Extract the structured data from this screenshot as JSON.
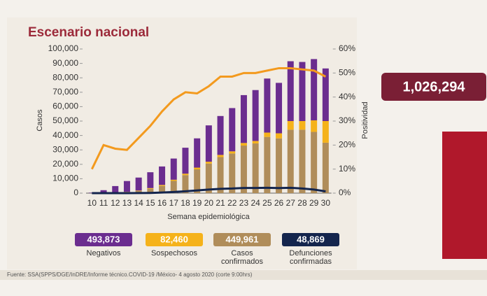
{
  "chart_data": {
    "type": "bar",
    "title": "Escenario nacional",
    "xlabel": "Semana epidemiológica",
    "ylabel": "Casos",
    "y2label": "Positividad",
    "categories": [
      "10",
      "11",
      "12",
      "13",
      "14",
      "15",
      "16",
      "17",
      "18",
      "19",
      "20",
      "21",
      "22",
      "23",
      "24",
      "25",
      "26",
      "27",
      "28",
      "29",
      "30"
    ],
    "ylim": [
      0,
      100000
    ],
    "yticks": [
      0,
      {
        "value": 10000,
        "label": "10,000"
      },
      {
        "value": 20000,
        "label": "20,000"
      },
      {
        "value": 30000,
        "label": "30,000"
      },
      {
        "value": 40000,
        "label": "40,000"
      },
      {
        "value": 50000,
        "label": "50,000"
      },
      {
        "value": 60000,
        "label": "60,000"
      },
      {
        "value": 70000,
        "label": "70,000"
      },
      {
        "value": 80000,
        "label": "80,000"
      },
      {
        "value": 90000,
        "label": "90,000"
      },
      {
        "value": 100000,
        "label": "100,000"
      }
    ],
    "y2lim": [
      0,
      60
    ],
    "y2ticks": [
      {
        "value": 0,
        "label": "0%"
      },
      {
        "value": 10,
        "label": "10%"
      },
      {
        "value": 20,
        "label": "20%"
      },
      {
        "value": 30,
        "label": "30%"
      },
      {
        "value": 40,
        "label": "40%"
      },
      {
        "value": 50,
        "label": "50%"
      },
      {
        "value": 60,
        "label": "60%"
      }
    ],
    "series": [
      {
        "name": "Casos confirmados",
        "type": "bar",
        "color": "#b08d5a",
        "total": {
          "value": 449961,
          "label": "449,961"
        },
        "values": [
          20,
          100,
          300,
          700,
          1500,
          3000,
          5000,
          8500,
          12500,
          16500,
          20500,
          25000,
          27500,
          33000,
          34500,
          39000,
          38000,
          44000,
          44000,
          42500,
          35000
        ]
      },
      {
        "name": "Sospechosos",
        "type": "bar",
        "color": "#f5b21a",
        "total": {
          "value": 82460,
          "label": "82,460"
        },
        "values": [
          10,
          50,
          100,
          200,
          300,
          500,
          700,
          800,
          1000,
          1200,
          1300,
          1500,
          1500,
          1800,
          1700,
          3000,
          3500,
          6000,
          6000,
          8000,
          15000
        ]
      },
      {
        "name": "Negativos",
        "type": "bar",
        "color": "#6b2d8f",
        "total": {
          "value": 493873,
          "label": "493,873"
        },
        "values": [
          300,
          1900,
          4500,
          7500,
          9000,
          11000,
          12800,
          14700,
          18000,
          20300,
          25200,
          27000,
          30000,
          33200,
          35300,
          37500,
          35000,
          41500,
          41000,
          42500,
          36500
        ]
      },
      {
        "name": "Defunciones confirmadas",
        "type": "line",
        "color": "#14254d",
        "total": {
          "value": 48869,
          "label": "48,869"
        },
        "values": [
          0,
          0,
          0,
          10,
          50,
          150,
          400,
          800,
          1300,
          1900,
          2500,
          3000,
          3200,
          3600,
          3600,
          3700,
          3500,
          3700,
          3200,
          2500,
          1200
        ]
      },
      {
        "name": "Positividad",
        "type": "line",
        "axis": "y2",
        "color": "#f39a1e",
        "values": [
          10,
          20,
          18.5,
          18,
          23,
          28,
          34,
          39,
          42,
          41.5,
          44.5,
          48.5,
          48.5,
          50,
          50,
          51,
          52,
          52,
          51.5,
          51,
          48.5
        ]
      }
    ]
  },
  "counter": {
    "value": 1026294,
    "label": "1,026,294"
  },
  "source": "Fuente: SSA(SPPS/DGE/InDRE/Informe técnico.COVID-19 /México- 4 agosto 2020 (corte 9:00hrs)"
}
